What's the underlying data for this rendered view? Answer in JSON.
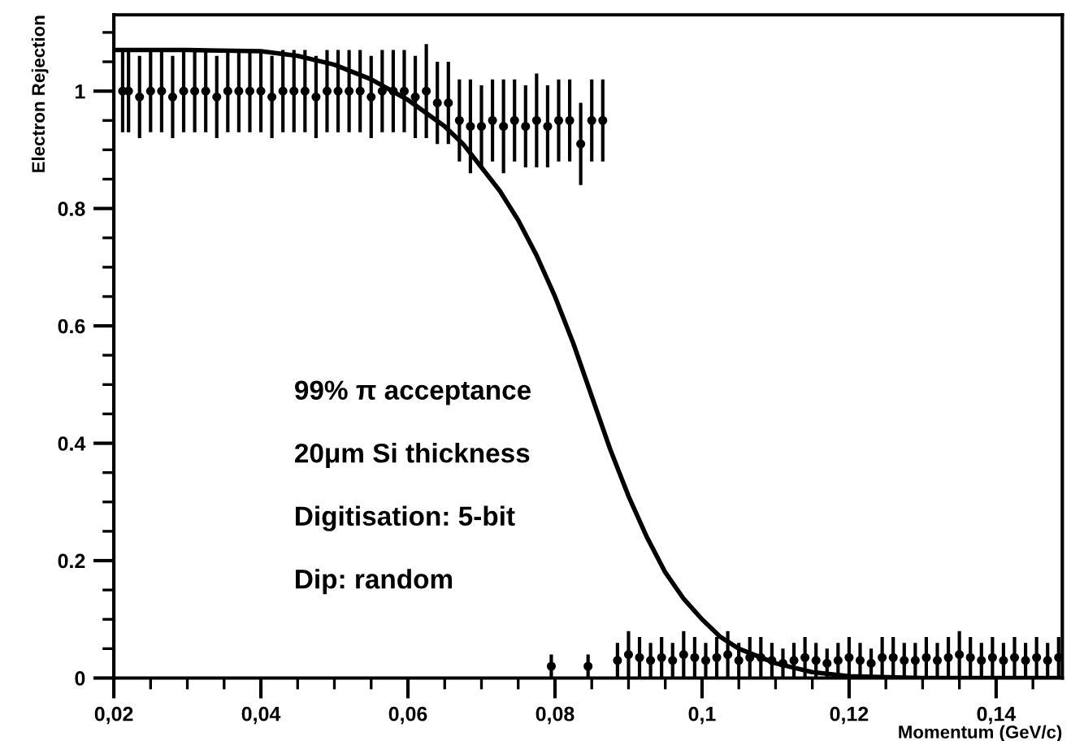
{
  "chart_data": {
    "type": "scatter",
    "xlabel": "Momentum (GeV/c)",
    "ylabel": "Electron Rejection",
    "annotations": [
      "99% π acceptance",
      "20μm Si thickness",
      "Digitisation: 5-bit",
      "Dip: random"
    ],
    "xlim": [
      0.02,
      0.149
    ],
    "ylim": [
      0,
      1.13
    ],
    "xticks": [
      {
        "value": 0.02,
        "label": "0,02"
      },
      {
        "value": 0.025,
        "label": null
      },
      {
        "value": 0.03,
        "label": null
      },
      {
        "value": 0.035,
        "label": null
      },
      {
        "value": 0.04,
        "label": "0,04"
      },
      {
        "value": 0.045,
        "label": null
      },
      {
        "value": 0.05,
        "label": null
      },
      {
        "value": 0.055,
        "label": null
      },
      {
        "value": 0.06,
        "label": "0,06"
      },
      {
        "value": 0.065,
        "label": null
      },
      {
        "value": 0.07,
        "label": null
      },
      {
        "value": 0.075,
        "label": null
      },
      {
        "value": 0.08,
        "label": "0,08"
      },
      {
        "value": 0.085,
        "label": null
      },
      {
        "value": 0.09,
        "label": null
      },
      {
        "value": 0.095,
        "label": null
      },
      {
        "value": 0.1,
        "label": "0,1"
      },
      {
        "value": 0.105,
        "label": null
      },
      {
        "value": 0.11,
        "label": null
      },
      {
        "value": 0.115,
        "label": null
      },
      {
        "value": 0.12,
        "label": "0,12"
      },
      {
        "value": 0.125,
        "label": null
      },
      {
        "value": 0.13,
        "label": null
      },
      {
        "value": 0.135,
        "label": null
      },
      {
        "value": 0.14,
        "label": "0,14"
      },
      {
        "value": 0.145,
        "label": null
      }
    ],
    "yticks": [
      0,
      {
        "value": 0.05,
        "label": null
      },
      {
        "value": 0.1,
        "label": null
      },
      {
        "value": 0.15,
        "label": null
      },
      0.2,
      {
        "value": 0.25,
        "label": null
      },
      {
        "value": 0.3,
        "label": null
      },
      {
        "value": 0.35,
        "label": null
      },
      0.4,
      {
        "value": 0.45,
        "label": null
      },
      {
        "value": 0.5,
        "label": null
      },
      {
        "value": 0.55,
        "label": null
      },
      0.6,
      {
        "value": 0.65,
        "label": null
      },
      {
        "value": 0.7,
        "label": null
      },
      {
        "value": 0.75,
        "label": null
      },
      0.8,
      {
        "value": 0.85,
        "label": null
      },
      {
        "value": 0.9,
        "label": null
      },
      {
        "value": 0.95,
        "label": null
      },
      1,
      {
        "value": 1.05,
        "label": null
      },
      {
        "value": 1.1,
        "label": null
      }
    ],
    "marker": "circle",
    "legend": false,
    "series": [
      {
        "color": "#000000",
        "x": [
          0.0212,
          0.022,
          0.0235,
          0.025,
          0.0265,
          0.028,
          0.0295,
          0.031,
          0.0325,
          0.034,
          0.0355,
          0.037,
          0.0385,
          0.04,
          0.0415,
          0.043,
          0.0445,
          0.046,
          0.0475,
          0.049,
          0.0505,
          0.052,
          0.0535,
          0.055,
          0.0565,
          0.058,
          0.0595,
          0.061,
          0.0625,
          0.064,
          0.0655,
          0.067,
          0.0685,
          0.07,
          0.0715,
          0.073,
          0.0745,
          0.076,
          0.0775,
          0.079,
          0.0805,
          0.082,
          0.0835,
          0.085,
          0.0865
        ],
        "values": [
          1.0,
          1.0,
          0.99,
          1.0,
          1.0,
          0.99,
          1.0,
          1.0,
          1.0,
          0.99,
          1.0,
          1.0,
          1.0,
          1.0,
          0.99,
          1.0,
          1.0,
          1.0,
          0.99,
          1.0,
          1.0,
          1.0,
          1.0,
          0.99,
          1.0,
          1.0,
          1.0,
          0.99,
          1.0,
          0.98,
          0.98,
          0.95,
          0.94,
          0.94,
          0.95,
          0.94,
          0.95,
          0.94,
          0.95,
          0.94,
          0.95,
          0.95,
          0.91,
          0.95,
          0.95
        ],
        "errors": [
          0.07,
          0.07,
          0.07,
          0.07,
          0.07,
          0.07,
          0.07,
          0.07,
          0.07,
          0.07,
          0.07,
          0.07,
          0.07,
          0.07,
          0.07,
          0.07,
          0.07,
          0.07,
          0.07,
          0.07,
          0.07,
          0.07,
          0.07,
          0.07,
          0.07,
          0.07,
          0.07,
          0.07,
          0.08,
          0.07,
          0.07,
          0.07,
          0.08,
          0.07,
          0.07,
          0.08,
          0.07,
          0.07,
          0.08,
          0.07,
          0.07,
          0.07,
          0.07,
          0.07,
          0.07
        ]
      },
      {
        "color": "#000000",
        "x": [
          0.0795,
          0.0845,
          0.0885,
          0.09,
          0.0915,
          0.093,
          0.0945,
          0.096,
          0.0975,
          0.099,
          0.1005,
          0.102,
          0.1035,
          0.105,
          0.1065,
          0.108,
          0.1095,
          0.111,
          0.1125,
          0.114,
          0.1155,
          0.117,
          0.1185,
          0.12,
          0.1215,
          0.123,
          0.1245,
          0.126,
          0.1275,
          0.129,
          0.1305,
          0.132,
          0.1335,
          0.135,
          0.1365,
          0.138,
          0.1395,
          0.141,
          0.1425,
          0.144,
          0.1455,
          0.147,
          0.1485
        ],
        "values": [
          0.02,
          0.02,
          0.03,
          0.04,
          0.035,
          0.03,
          0.035,
          0.03,
          0.04,
          0.035,
          0.03,
          0.035,
          0.04,
          0.03,
          0.035,
          0.035,
          0.03,
          0.025,
          0.03,
          0.035,
          0.03,
          0.025,
          0.03,
          0.035,
          0.03,
          0.025,
          0.035,
          0.035,
          0.03,
          0.03,
          0.035,
          0.03,
          0.035,
          0.04,
          0.035,
          0.03,
          0.035,
          0.03,
          0.035,
          0.03,
          0.035,
          0.03,
          0.035
        ],
        "errors": [
          0.02,
          0.02,
          0.03,
          0.04,
          0.035,
          0.03,
          0.035,
          0.03,
          0.04,
          0.035,
          0.03,
          0.035,
          0.04,
          0.03,
          0.035,
          0.035,
          0.03,
          0.025,
          0.03,
          0.035,
          0.03,
          0.025,
          0.03,
          0.035,
          0.03,
          0.025,
          0.035,
          0.035,
          0.03,
          0.03,
          0.035,
          0.03,
          0.035,
          0.04,
          0.035,
          0.03,
          0.035,
          0.03,
          0.035,
          0.03,
          0.035,
          0.03,
          0.035
        ]
      },
      {
        "type": "line",
        "color": "#000000",
        "marker": "none",
        "line_style": "solid",
        "x": [
          0.02,
          0.03,
          0.04,
          0.045,
          0.05,
          0.055,
          0.06,
          0.065,
          0.0675,
          0.07,
          0.0725,
          0.075,
          0.0775,
          0.08,
          0.0825,
          0.085,
          0.0875,
          0.09,
          0.0925,
          0.095,
          0.0975,
          0.1,
          0.1025,
          0.105,
          0.11,
          0.115,
          0.12,
          0.13,
          0.149
        ],
        "values": [
          1.07,
          1.07,
          1.068,
          1.06,
          1.045,
          1.02,
          0.985,
          0.94,
          0.91,
          0.87,
          0.83,
          0.78,
          0.72,
          0.65,
          0.57,
          0.48,
          0.39,
          0.31,
          0.24,
          0.18,
          0.135,
          0.1,
          0.07,
          0.05,
          0.025,
          0.01,
          0.003,
          0,
          0
        ]
      }
    ]
  }
}
